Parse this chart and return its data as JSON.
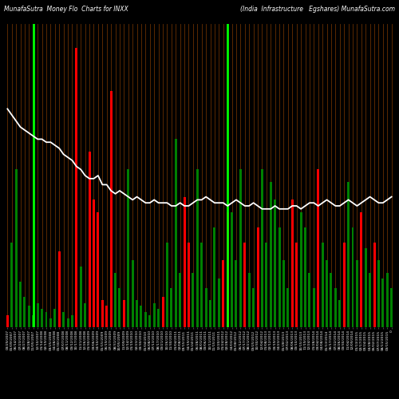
{
  "title_left": "MunafaSutra  Money Flo  Charts for INXX",
  "title_right": "(India  Infrastructure   Egshares) MunafaSutra.com",
  "background_color": "#000000",
  "bar_colors": [
    "red",
    "green",
    "green",
    "green",
    "green",
    "green",
    "green",
    "green",
    "green",
    "green",
    "green",
    "green",
    "red",
    "green",
    "green",
    "green",
    "red",
    "green",
    "green",
    "red",
    "red",
    "red",
    "red",
    "red",
    "red",
    "green",
    "green",
    "red",
    "green",
    "green",
    "green",
    "green",
    "green",
    "green",
    "green",
    "green",
    "red",
    "green",
    "green",
    "green",
    "green",
    "red",
    "red",
    "green",
    "green",
    "green",
    "green",
    "green",
    "green",
    "green",
    "red",
    "red",
    "green",
    "green",
    "green",
    "red",
    "green",
    "green",
    "red",
    "green",
    "green",
    "green",
    "green",
    "green",
    "green",
    "green",
    "red",
    "red",
    "green",
    "green",
    "green",
    "green",
    "red",
    "green",
    "green",
    "green",
    "green",
    "green",
    "red",
    "green",
    "green",
    "green",
    "red",
    "green",
    "green",
    "red",
    "green",
    "green",
    "green",
    "green"
  ],
  "bar_heights": [
    4,
    28,
    52,
    15,
    10,
    7,
    4,
    8,
    6,
    5,
    3,
    6,
    25,
    5,
    3,
    4,
    92,
    20,
    8,
    58,
    42,
    38,
    9,
    7,
    78,
    18,
    13,
    9,
    52,
    22,
    9,
    7,
    5,
    4,
    8,
    6,
    10,
    28,
    13,
    62,
    18,
    43,
    28,
    18,
    52,
    28,
    13,
    9,
    33,
    16,
    22,
    38,
    38,
    22,
    52,
    28,
    18,
    13,
    33,
    52,
    28,
    48,
    42,
    33,
    22,
    13,
    42,
    28,
    38,
    33,
    18,
    13,
    52,
    28,
    22,
    18,
    13,
    9,
    28,
    48,
    33,
    22,
    38,
    26,
    18,
    28,
    22,
    16,
    18,
    13
  ],
  "green_vline_indices": [
    6,
    51
  ],
  "white_line_y": [
    72,
    70,
    68,
    66,
    65,
    64,
    63,
    62,
    62,
    61,
    61,
    60,
    59,
    57,
    56,
    55,
    53,
    52,
    50,
    49,
    49,
    50,
    47,
    47,
    45,
    44,
    45,
    44,
    43,
    42,
    43,
    42,
    41,
    41,
    42,
    41,
    41,
    41,
    40,
    40,
    41,
    40,
    40,
    41,
    42,
    42,
    43,
    42,
    41,
    41,
    41,
    40,
    41,
    42,
    41,
    40,
    40,
    41,
    40,
    39,
    39,
    39,
    40,
    39,
    39,
    39,
    40,
    40,
    39,
    40,
    41,
    41,
    40,
    41,
    42,
    41,
    40,
    40,
    41,
    42,
    41,
    40,
    41,
    42,
    43,
    42,
    41,
    41,
    42,
    43
  ],
  "xlabels": [
    "03/29/2007",
    "05/09/2007",
    "06/14/2007",
    "07/23/2007",
    "08/27/2007",
    "09/28/2007",
    "11/05/2007",
    "12/10/2007",
    "01/14/2008",
    "02/19/2008",
    "03/25/2008",
    "04/28/2008",
    "05/30/2008",
    "07/07/2008",
    "08/11/2008",
    "09/12/2008",
    "10/17/2008",
    "11/21/2008",
    "12/26/2008",
    "01/30/2009",
    "03/06/2009",
    "04/10/2009",
    "05/15/2009",
    "06/19/2009",
    "07/27/2009",
    "08/31/2009",
    "10/05/2009",
    "11/09/2009",
    "12/14/2009",
    "01/19/2010",
    "02/23/2010",
    "03/30/2010",
    "05/04/2010",
    "06/08/2010",
    "07/13/2010",
    "08/17/2010",
    "09/21/2010",
    "10/26/2010",
    "11/30/2010",
    "01/04/2011",
    "02/08/2011",
    "03/15/2011",
    "04/19/2011",
    "05/24/2011",
    "06/28/2011",
    "08/01/2011",
    "09/06/2011",
    "10/11/2011",
    "11/15/2011",
    "12/20/2011",
    "01/24/2012",
    "02/28/2012",
    "04/03/2012",
    "05/08/2012",
    "06/12/2012",
    "07/17/2012",
    "08/21/2012",
    "09/25/2012",
    "10/30/2012",
    "12/04/2012",
    "01/08/2013",
    "02/12/2013",
    "03/19/2013",
    "04/23/2013",
    "05/28/2013",
    "07/02/2013",
    "08/06/2013",
    "09/10/2013",
    "10/15/2013",
    "11/19/2013",
    "12/24/2013",
    "01/28/2014",
    "03/04/2014",
    "04/08/2014",
    "05/13/2014",
    "06/17/2014",
    "07/22/2014",
    "08/26/2014",
    "09/30/2014",
    "11/04/2014",
    "12/09/2014",
    "01/13/2015",
    "02/17/2015",
    "03/24/2015",
    "04/28/2015",
    "06/02/2015",
    "07/07/2015",
    "08/11/2015",
    "09/15/2015",
    "0"
  ],
  "ylim": [
    0,
    100
  ],
  "fig_w": 5.0,
  "fig_h": 5.0,
  "dpi": 100
}
